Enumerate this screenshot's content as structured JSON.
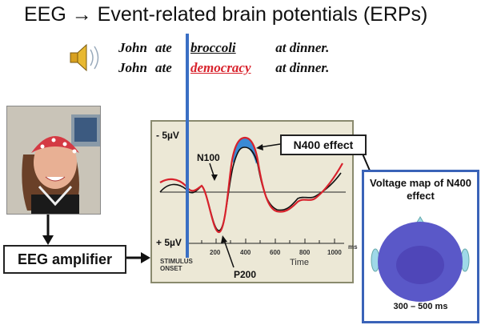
{
  "title": "EEG → Event-related brain potentials (ERPs)",
  "icons": {
    "speaker": "speaker-icon"
  },
  "sentences": [
    {
      "w1": "John",
      "w2": "ate",
      "w3": "broccoli",
      "w4": "at dinner."
    },
    {
      "w1": "John",
      "w2": "ate",
      "w3": "democracy",
      "w4": "at dinner."
    }
  ],
  "colors": {
    "congruent": "#111111",
    "incongruent": "#d8222c",
    "effect_fill": "#3a8ad4",
    "stimulus_line": "#3a6fc4",
    "map_border": "#3a63b8"
  },
  "amplifier": {
    "label": "EEG amplifier"
  },
  "erp": {
    "ylabel_top": "- 5µV",
    "ylabel_bottom": "+ 5µV",
    "peaks": {
      "n100": "N100",
      "p200": "P200"
    },
    "n400_label": "N400 effect",
    "stimulus_onset": "STIMULUS ONSET",
    "x_unit": "ms",
    "x_title": "Time",
    "x_ticks": [
      "200",
      "400",
      "600",
      "800",
      "1000"
    ]
  },
  "voltage_map": {
    "title": "Voltage map of N400 effect",
    "range": "300 – 500 ms"
  }
}
